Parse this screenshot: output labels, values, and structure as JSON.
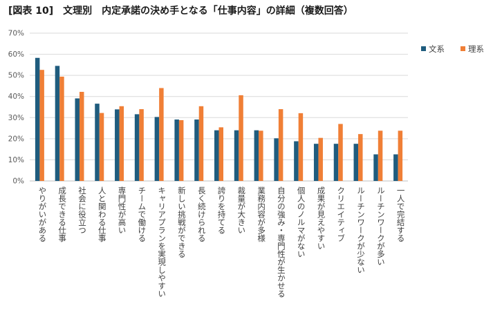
{
  "title": "[図表 10]　文理別　内定承諾の決め手となる「仕事内容」の詳細（複数回答）",
  "chart_data": {
    "type": "bar",
    "ylim": [
      0,
      70
    ],
    "yticks": [
      "0%",
      "10%",
      "20%",
      "30%",
      "40%",
      "50%",
      "60%",
      "70%"
    ],
    "grid": true,
    "legend_position": "top-right",
    "categories": [
      "やりがいがある",
      "成長できる仕事",
      "社会に役立つ",
      "人と関わる仕事",
      "専門性が高い",
      "チームで働ける",
      "キャリアプランを実現しやすい",
      "新しい挑戦ができる",
      "長く続けられる",
      "誇りを持てる",
      "裁量が大きい",
      "業務内容が多様",
      "自分の強み・専門性が生かせる",
      "個人のノルマがない",
      "成果が見えやすい",
      "クリエイティブ",
      "ルーチンワークが少ない",
      "ルーチンワークが多い",
      "一人で完結する"
    ],
    "series": [
      {
        "name": "文系",
        "color": "#1F5C7E",
        "values": [
          58.3,
          54.5,
          39.1,
          36.6,
          33.9,
          31.6,
          30.3,
          29.1,
          29.1,
          24.0,
          24.0,
          24.0,
          20.2,
          18.8,
          17.6,
          17.6,
          17.6,
          12.6,
          12.6
        ]
      },
      {
        "name": "理系",
        "color": "#F07F36",
        "values": [
          52.6,
          49.4,
          42.2,
          32.2,
          35.4,
          34.0,
          44.0,
          28.8,
          35.4,
          25.4,
          40.6,
          23.8,
          34.0,
          32.1,
          20.4,
          27.0,
          22.2,
          23.8,
          23.8
        ]
      }
    ]
  }
}
